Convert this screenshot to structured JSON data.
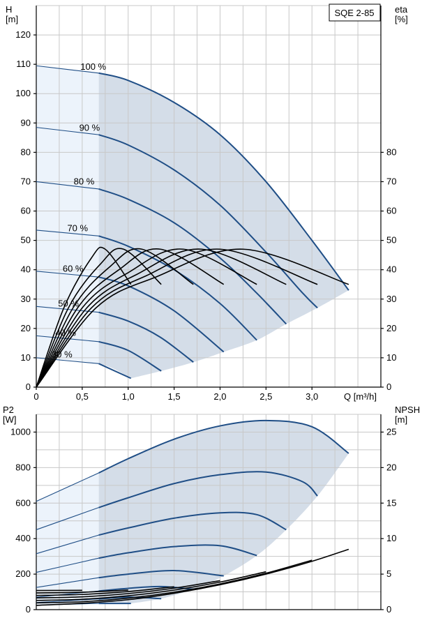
{
  "title": "SQE 2-85",
  "colors": {
    "curve": "#1f4e86",
    "region": "#d4dde8",
    "region_light": "#ecf3fb",
    "grid": "#c8c8c8",
    "eta": "#000000"
  },
  "chart_data": [
    {
      "type": "line",
      "name": "head",
      "xlabel": "Q [m³/h]",
      "ylabel": "H\n[m]",
      "ylabel_lines": [
        "H",
        "[m]"
      ],
      "y2label_lines": [
        "eta",
        "[%]"
      ],
      "xlim": [
        0,
        3.75
      ],
      "ylim": [
        0,
        130
      ],
      "y2lim": [
        0,
        130
      ],
      "x_ticks": [
        "0",
        "0,5",
        "1,0",
        "1,5",
        "2,0",
        "2,5",
        "3,0"
      ],
      "x_tick_values": [
        0,
        0.5,
        1.0,
        1.5,
        2.0,
        2.5,
        3.0
      ],
      "y_ticks": [
        0,
        10,
        20,
        30,
        40,
        50,
        60,
        70,
        80,
        90,
        100,
        110,
        120
      ],
      "y2_ticks": [
        0,
        10,
        20,
        30,
        40,
        50,
        60,
        70,
        80
      ],
      "grid": true,
      "light_zone_x": [
        0,
        0.68
      ],
      "series": [
        {
          "name": "100 %",
          "x": [
            0,
            0.68,
            1.0,
            1.5,
            2.0,
            2.5,
            3.0,
            3.4
          ],
          "y": [
            109.5,
            107,
            104.5,
            97,
            86,
            70,
            50,
            33
          ]
        },
        {
          "name": "90 %",
          "x": [
            0,
            0.68,
            1.0,
            1.5,
            2.0,
            2.5,
            2.9,
            3.06
          ],
          "y": [
            88.5,
            86,
            82.5,
            74,
            62,
            46,
            32,
            27
          ]
        },
        {
          "name": "80 %",
          "x": [
            0,
            0.68,
            1.0,
            1.5,
            2.0,
            2.4,
            2.72
          ],
          "y": [
            70,
            67.5,
            64,
            56,
            44,
            32,
            21.5
          ]
        },
        {
          "name": "70 %",
          "x": [
            0,
            0.68,
            1.0,
            1.5,
            2.0,
            2.4
          ],
          "y": [
            53.5,
            51.5,
            48,
            40,
            28.5,
            16
          ]
        },
        {
          "name": "60 %",
          "x": [
            0,
            0.68,
            1.0,
            1.5,
            2.04
          ],
          "y": [
            39.5,
            37.5,
            34.5,
            26,
            12
          ]
        },
        {
          "name": "50 %",
          "x": [
            0,
            0.68,
            1.0,
            1.35,
            1.71
          ],
          "y": [
            27.5,
            25.5,
            22.5,
            17,
            8.5
          ]
        },
        {
          "name": "40 %",
          "x": [
            0,
            0.68,
            1.0,
            1.36
          ],
          "y": [
            17.5,
            15.5,
            12.5,
            5.5
          ]
        },
        {
          "name": "30 %",
          "x": [
            0,
            0.68,
            1.03
          ],
          "y": [
            10,
            8,
            3
          ]
        }
      ],
      "region_boundary": {
        "x": [
          1.03,
          1.36,
          1.71,
          2.04,
          2.4,
          2.72,
          3.06,
          3.4
        ],
        "y": [
          3,
          5.5,
          8.5,
          12,
          16,
          21.5,
          27,
          33
        ]
      },
      "eta_curves": [
        {
          "x": [
            0,
            0.3,
            0.6,
            0.75,
            1.03
          ],
          "y": [
            0,
            27,
            44,
            47,
            35
          ]
        },
        {
          "x": [
            0,
            0.35,
            0.7,
            0.95,
            1.36
          ],
          "y": [
            0,
            27,
            42,
            47,
            35
          ]
        },
        {
          "x": [
            0,
            0.4,
            0.8,
            1.15,
            1.71
          ],
          "y": [
            0,
            27,
            41,
            47,
            35
          ]
        },
        {
          "x": [
            0,
            0.45,
            0.9,
            1.35,
            2.04
          ],
          "y": [
            0,
            27,
            40,
            47,
            35
          ]
        },
        {
          "x": [
            0,
            0.5,
            1.0,
            1.6,
            2.4
          ],
          "y": [
            0,
            27,
            39,
            47,
            35
          ]
        },
        {
          "x": [
            0,
            0.55,
            1.1,
            1.8,
            2.72
          ],
          "y": [
            0,
            27,
            38.5,
            47,
            35
          ]
        },
        {
          "x": [
            0,
            0.6,
            1.2,
            2.0,
            3.06
          ],
          "y": [
            0,
            27,
            38,
            47,
            35
          ]
        },
        {
          "x": [
            0,
            0.65,
            1.3,
            2.25,
            3.4
          ],
          "y": [
            0,
            27,
            37.5,
            47,
            35
          ]
        }
      ],
      "label_positions_note": "",
      "series_label_anchor_x": [
        0.62,
        0.58,
        0.52,
        0.45,
        0.4,
        0.35,
        0.32,
        0.28
      ]
    },
    {
      "type": "line",
      "name": "power",
      "ylabel_lines": [
        "P2",
        "[W]"
      ],
      "y2label_lines": [
        "NPSH",
        "[m]"
      ],
      "xlim": [
        0,
        3.75
      ],
      "ylim": [
        0,
        1100
      ],
      "y_ticks": [
        0,
        200,
        400,
        600,
        800,
        1000
      ],
      "y2lim": [
        0,
        27.5
      ],
      "y2_ticks": [
        0,
        5,
        10,
        15,
        20,
        25
      ],
      "grid": true,
      "series": [
        {
          "name": "100 %",
          "x": [
            0,
            0.68,
            1.0,
            1.5,
            2.0,
            2.5,
            3.0,
            3.4
          ],
          "y": [
            610,
            770,
            850,
            960,
            1035,
            1065,
            1030,
            880
          ]
        },
        {
          "name": "90 %",
          "x": [
            0,
            0.68,
            1.0,
            1.5,
            2.0,
            2.5,
            2.9,
            3.06
          ],
          "y": [
            450,
            575,
            630,
            710,
            760,
            775,
            720,
            640
          ]
        },
        {
          "name": "80 %",
          "x": [
            0,
            0.68,
            1.0,
            1.5,
            2.0,
            2.4,
            2.72
          ],
          "y": [
            315,
            420,
            460,
            515,
            545,
            535,
            450
          ]
        },
        {
          "name": "70 %",
          "x": [
            0,
            0.68,
            1.0,
            1.5,
            2.0,
            2.4
          ],
          "y": [
            210,
            290,
            320,
            355,
            360,
            305
          ]
        },
        {
          "name": "60 %",
          "x": [
            0,
            0.68,
            1.0,
            1.5,
            2.04
          ],
          "y": [
            125,
            180,
            200,
            220,
            190
          ]
        },
        {
          "name": "50 %",
          "x": [
            0,
            0.68,
            1.0,
            1.35,
            1.71
          ],
          "y": [
            70,
            105,
            120,
            130,
            115
          ]
        },
        {
          "name": "40 %",
          "x": [
            0,
            0.68,
            1.0,
            1.36
          ],
          "y": [
            40,
            60,
            70,
            62
          ]
        },
        {
          "name": "30 %",
          "x": [
            0,
            0.68,
            1.03
          ],
          "y": [
            25,
            35,
            35
          ]
        }
      ],
      "npsh": {
        "x": [
          0,
          0.5,
          1.0,
          1.5,
          2.0,
          2.5,
          3.0,
          3.4
        ],
        "y": [
          0.6,
          0.9,
          1.4,
          2.3,
          3.5,
          5.0,
          6.8,
          8.5
        ]
      }
    }
  ]
}
